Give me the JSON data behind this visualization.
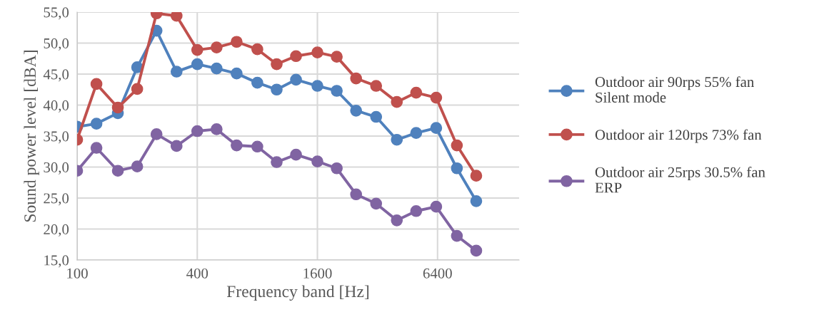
{
  "chart_data": {
    "type": "line",
    "xlabel": "Frequency band [Hz]",
    "ylabel": "Sound power level [dBA]",
    "x": [
      100,
      125,
      160,
      200,
      250,
      315,
      400,
      500,
      630,
      800,
      1000,
      1250,
      1600,
      2000,
      2500,
      3150,
      4000,
      5000,
      6300,
      8000,
      10000
    ],
    "series": [
      {
        "name": "Outdoor air 90rps 55% fan\nSilent mode",
        "color": "#4f81bd",
        "values": [
          36.5,
          37.0,
          38.7,
          46.1,
          52.0,
          45.4,
          46.6,
          45.9,
          45.1,
          43.6,
          42.5,
          44.1,
          43.1,
          42.3,
          39.1,
          38.1,
          34.4,
          35.5,
          36.3,
          29.8,
          24.5
        ]
      },
      {
        "name": "Outdoor air 120rps 73% fan",
        "color": "#c0504d",
        "values": [
          34.4,
          43.4,
          39.6,
          42.6,
          54.8,
          54.4,
          48.9,
          49.3,
          50.2,
          49.0,
          46.6,
          47.9,
          48.5,
          47.8,
          44.3,
          43.1,
          40.5,
          42.0,
          41.2,
          33.5,
          28.6
        ]
      },
      {
        "name": "Outdoor air 25rps 30.5% fan\nERP",
        "color": "#8064a2",
        "values": [
          29.4,
          33.1,
          29.4,
          30.1,
          35.3,
          33.4,
          35.8,
          36.1,
          33.5,
          33.3,
          30.8,
          32.0,
          30.9,
          29.8,
          25.6,
          24.1,
          21.4,
          22.9,
          23.6,
          18.9,
          16.5
        ]
      }
    ],
    "log": "x",
    "xlim": [
      100,
      16400
    ],
    "xticks": [
      100,
      400,
      1600,
      6400
    ],
    "ylim": [
      15,
      55
    ],
    "yticks": [
      {
        "value": 15,
        "label": "15,0"
      },
      {
        "value": 20,
        "label": "20,0"
      },
      {
        "value": 25,
        "label": "25,0"
      },
      {
        "value": 30,
        "label": "30,0"
      },
      {
        "value": 35,
        "label": "35,0"
      },
      {
        "value": 40,
        "label": "40,0"
      },
      {
        "value": 45,
        "label": "45,0"
      },
      {
        "value": 50,
        "label": "50,0"
      },
      {
        "value": 55,
        "label": "55,0"
      }
    ],
    "grid": true,
    "legend": "right",
    "marker": "circle",
    "line_style": "solid"
  }
}
